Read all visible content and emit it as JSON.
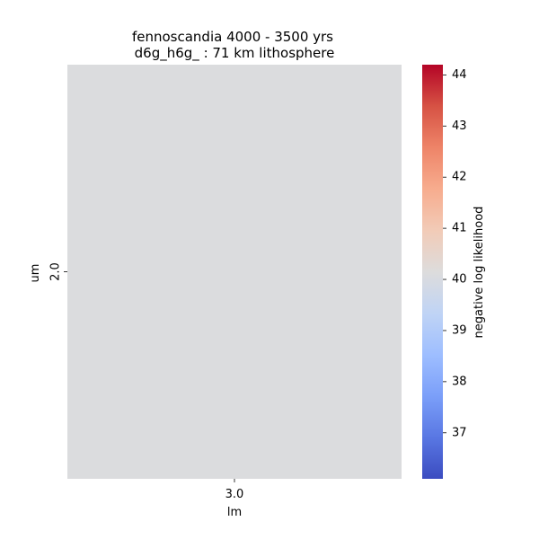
{
  "chart_data": {
    "type": "heatmap",
    "title_lines": [
      "fennoscandia 4000 - 3500 yrs",
      "d6g_h6g_ : 71 km lithosphere"
    ],
    "xlabel": "lm",
    "ylabel": "um",
    "x_categories": [
      "3.0"
    ],
    "y_categories": [
      "2.0"
    ],
    "values": [
      [
        40.1
      ]
    ],
    "colorbar": {
      "label": "negative log likelihood",
      "vmin": 36.1,
      "vmax": 44.2,
      "ticks": [
        "37",
        "38",
        "39",
        "40",
        "41",
        "42",
        "43",
        "44"
      ],
      "colormap": "coolwarm",
      "colormap_stops": [
        "#3b4cc0",
        "#5977e3",
        "#7b9ff9",
        "#9ebeff",
        "#c0d4f5",
        "#dddcdc",
        "#f2cbb7",
        "#f7ac8e",
        "#ee8468",
        "#d65244",
        "#b40426"
      ]
    }
  }
}
